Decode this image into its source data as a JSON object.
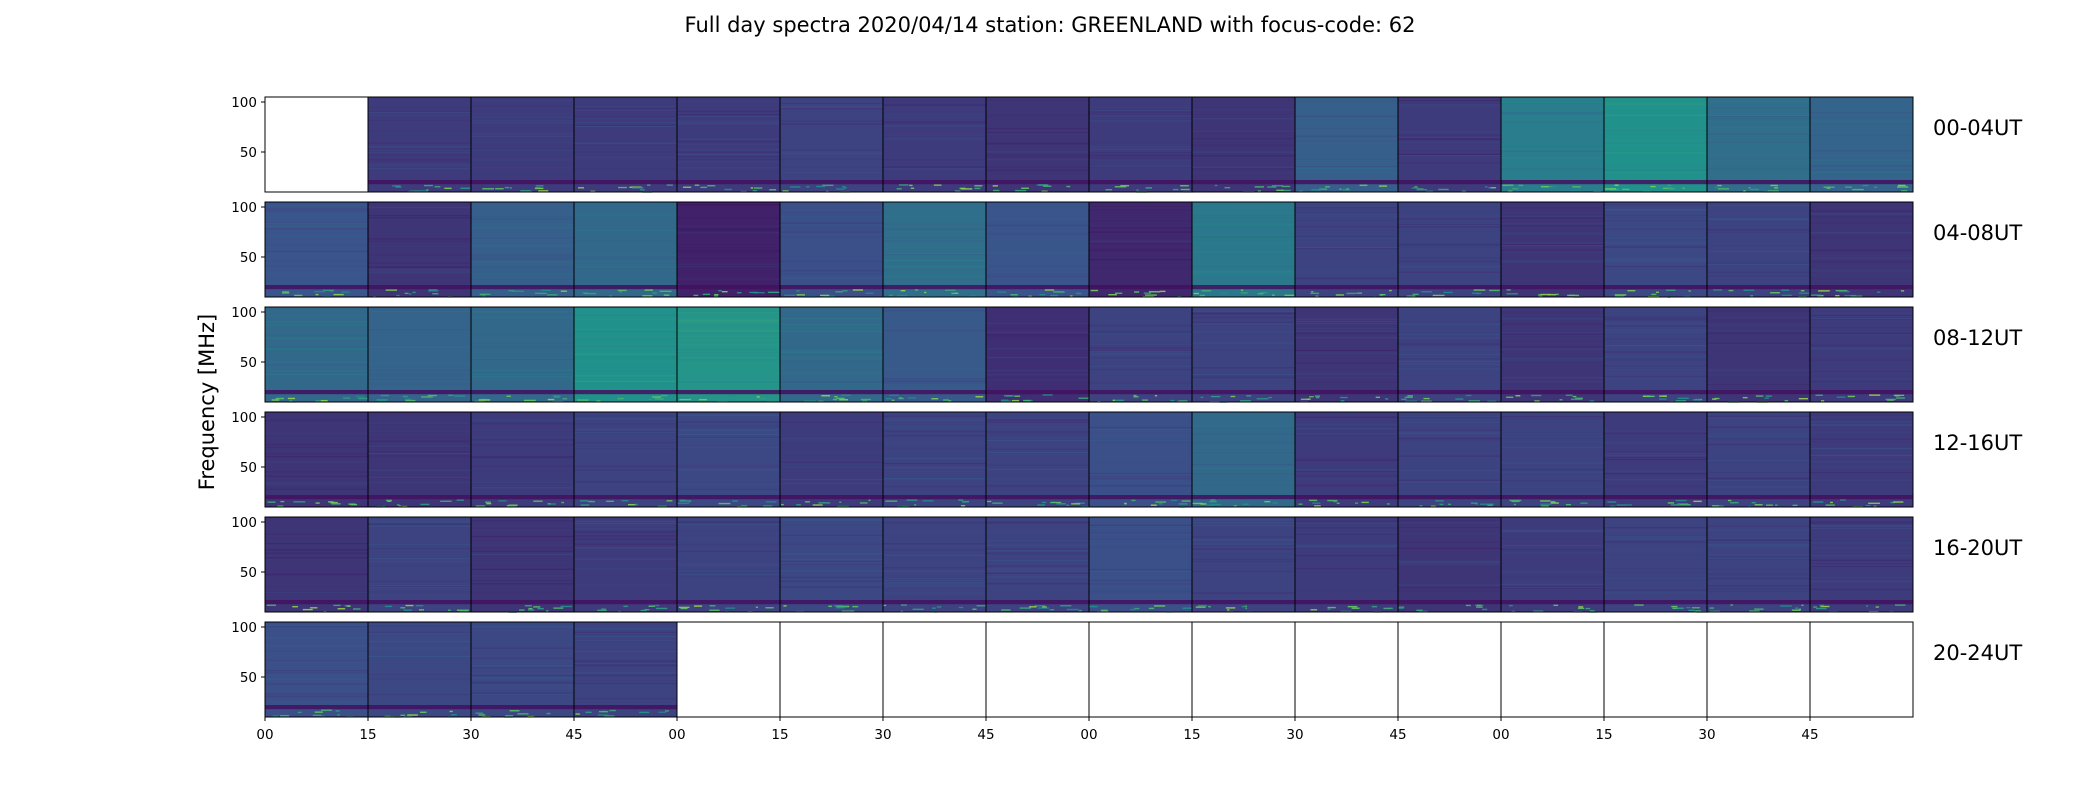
{
  "chart_data": {
    "type": "heatmap",
    "title": "Full day spectra 2020/04/14 station: GREENLAND with focus-code: 62",
    "ylabel": "Frequency [MHz]",
    "ylim": [
      10,
      105
    ],
    "ytick_labels": [
      "50",
      "100"
    ],
    "xtick_labels": [
      "00",
      "15",
      "30",
      "45",
      "00",
      "15",
      "30",
      "45",
      "00",
      "15",
      "30",
      "45",
      "00",
      "15",
      "30",
      "45"
    ],
    "row_labels": [
      "00-04UT",
      "04-08UT",
      "08-12UT",
      "12-16UT",
      "16-20UT",
      "20-24UT"
    ],
    "panels_per_row": 16,
    "colormap": [
      "#440154",
      "#3b528b",
      "#21918c",
      "#5ec962",
      "#fde725"
    ],
    "rows": [
      {
        "label": "00-04UT",
        "present": [
          0,
          1,
          1,
          1,
          1,
          1,
          1,
          1,
          1,
          1,
          1,
          1,
          1,
          1,
          1,
          1
        ],
        "mean_level": [
          0,
          0.18,
          0.18,
          0.18,
          0.18,
          0.2,
          0.18,
          0.16,
          0.18,
          0.16,
          0.3,
          0.18,
          0.42,
          0.5,
          0.36,
          0.32
        ]
      },
      {
        "label": "04-08UT",
        "present": [
          1,
          1,
          1,
          1,
          1,
          1,
          1,
          1,
          1,
          1,
          1,
          1,
          1,
          1,
          1,
          1
        ],
        "mean_level": [
          0.26,
          0.16,
          0.3,
          0.34,
          0.1,
          0.24,
          0.36,
          0.26,
          0.12,
          0.4,
          0.2,
          0.2,
          0.16,
          0.22,
          0.2,
          0.16
        ]
      },
      {
        "label": "08-12UT",
        "present": [
          1,
          1,
          1,
          1,
          1,
          1,
          1,
          1,
          1,
          1,
          1,
          1,
          1,
          1,
          1,
          1
        ],
        "mean_level": [
          0.34,
          0.32,
          0.34,
          0.5,
          0.52,
          0.34,
          0.28,
          0.14,
          0.2,
          0.2,
          0.16,
          0.2,
          0.16,
          0.2,
          0.16,
          0.18
        ]
      },
      {
        "label": "12-16UT",
        "present": [
          1,
          1,
          1,
          1,
          1,
          1,
          1,
          1,
          1,
          1,
          1,
          1,
          1,
          1,
          1,
          1
        ],
        "mean_level": [
          0.16,
          0.16,
          0.18,
          0.2,
          0.22,
          0.18,
          0.2,
          0.2,
          0.24,
          0.34,
          0.18,
          0.2,
          0.2,
          0.18,
          0.2,
          0.18
        ]
      },
      {
        "label": "16-20UT",
        "present": [
          1,
          1,
          1,
          1,
          1,
          1,
          1,
          1,
          1,
          1,
          1,
          1,
          1,
          1,
          1,
          1
        ],
        "mean_level": [
          0.16,
          0.2,
          0.16,
          0.18,
          0.2,
          0.22,
          0.2,
          0.2,
          0.24,
          0.2,
          0.18,
          0.16,
          0.18,
          0.2,
          0.2,
          0.18
        ]
      },
      {
        "label": "20-24UT",
        "present": [
          1,
          1,
          1,
          1,
          0,
          0,
          0,
          0,
          0,
          0,
          0,
          0,
          0,
          0,
          0,
          0
        ],
        "mean_level": [
          0.24,
          0.22,
          0.22,
          0.2,
          0,
          0,
          0,
          0,
          0,
          0,
          0,
          0,
          0,
          0,
          0,
          0
        ]
      }
    ]
  }
}
